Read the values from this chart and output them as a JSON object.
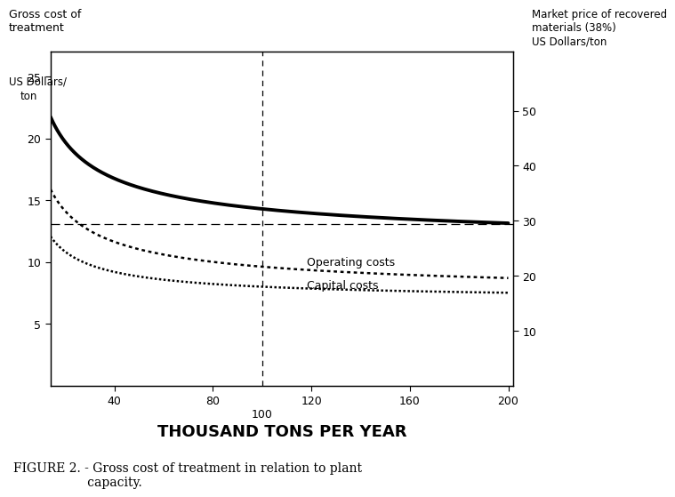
{
  "xlabel": "THOUSAND TONS PER YEAR",
  "ylabel_left_line1": "US Dollars/",
  "ylabel_left_line2": "ton",
  "ylabel_right": "Market price of recovered\nmaterials (38%)\nUS Dollars/ton",
  "gross_label": "Gross cost of\ntreatment",
  "ylim_left": [
    0,
    27
  ],
  "ylim_right": [
    0,
    60.75
  ],
  "xlim": [
    14,
    202
  ],
  "xticks": [
    40,
    80,
    120,
    160,
    200
  ],
  "yticks_left": [
    5,
    10,
    15,
    20,
    25
  ],
  "yticks_right": [
    10,
    20,
    30,
    40,
    50
  ],
  "hline_y": 13.1,
  "vline_x": 100,
  "operating_label": "Operating costs",
  "capital_label": "Capital costs",
  "figure_caption": "FIGURE 2. - Gross cost of treatment in relation to plant\n                   capacity.",
  "background_color": "#ffffff",
  "line_color": "#000000",
  "x_start": 14,
  "x_end": 200
}
